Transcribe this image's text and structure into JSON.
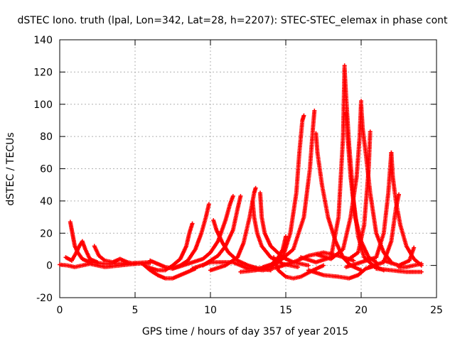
{
  "chart_data": {
    "type": "scatter",
    "title": "dSTEC Iono. truth (lpal, Lon=342, Lat=28, h=2207): STEC-STEC_elemax in phase cont",
    "xlabel": "GPS time / hours of day 357 of year 2015",
    "ylabel": "dSTEC  / TECUs",
    "xlim": [
      0,
      25
    ],
    "ylim": [
      -20,
      140
    ],
    "xticks": [
      0,
      5,
      10,
      15,
      20,
      25
    ],
    "yticks": [
      -20,
      0,
      20,
      40,
      60,
      80,
      100,
      120,
      140
    ],
    "grid": true,
    "legend": "none",
    "marker": "+",
    "color": "#ff0000",
    "series": [
      {
        "points": [
          [
            0.0,
            0.5
          ],
          [
            0.5,
            0
          ],
          [
            1.0,
            -1
          ],
          [
            1.5,
            0
          ],
          [
            2.0,
            1
          ],
          [
            2.5,
            0
          ],
          [
            3.0,
            -1
          ],
          [
            4.0,
            0
          ],
          [
            5.0,
            1
          ],
          [
            6.0,
            1.5
          ]
        ]
      },
      {
        "points": [
          [
            0.7,
            27
          ],
          [
            0.8,
            22
          ],
          [
            0.9,
            17
          ],
          [
            1.0,
            12
          ],
          [
            1.2,
            8
          ],
          [
            1.5,
            4
          ],
          [
            2.0,
            2
          ],
          [
            3.0,
            1
          ],
          [
            4.0,
            1
          ],
          [
            5.0,
            1.5
          ],
          [
            6.0,
            2
          ]
        ]
      },
      {
        "points": [
          [
            0.4,
            5
          ],
          [
            0.8,
            3
          ],
          [
            1.1,
            8
          ],
          [
            1.3,
            12
          ],
          [
            1.5,
            15
          ],
          [
            1.7,
            10
          ],
          [
            2.0,
            4
          ],
          [
            2.5,
            2
          ]
        ]
      },
      {
        "points": [
          [
            2.3,
            12
          ],
          [
            2.6,
            6
          ],
          [
            3.0,
            3
          ],
          [
            3.5,
            2
          ],
          [
            4.0,
            4
          ],
          [
            4.5,
            2
          ],
          [
            5.0,
            1
          ]
        ]
      },
      {
        "points": [
          [
            5.5,
            1
          ],
          [
            6.0,
            -3
          ],
          [
            6.5,
            -6
          ],
          [
            7.0,
            -8
          ],
          [
            7.5,
            -8
          ],
          [
            8.0,
            -6
          ],
          [
            8.5,
            -4
          ],
          [
            9.0,
            -2
          ]
        ]
      },
      {
        "points": [
          [
            5.8,
            -1
          ],
          [
            6.5,
            -3
          ],
          [
            7.0,
            -3
          ],
          [
            7.5,
            0
          ],
          [
            8.0,
            4
          ],
          [
            8.4,
            12
          ],
          [
            8.6,
            20
          ],
          [
            8.8,
            26
          ]
        ]
      },
      {
        "points": [
          [
            6.0,
            3
          ],
          [
            6.5,
            1
          ],
          [
            7.0,
            -1
          ],
          [
            7.5,
            -2
          ],
          [
            8.0,
            0
          ],
          [
            8.5,
            3
          ],
          [
            9.0,
            10
          ],
          [
            9.4,
            20
          ],
          [
            9.7,
            30
          ],
          [
            9.9,
            38
          ]
        ]
      },
      {
        "points": [
          [
            7.5,
            -2
          ],
          [
            8.5,
            1
          ],
          [
            9.5,
            4
          ],
          [
            10.0,
            8
          ],
          [
            10.5,
            15
          ],
          [
            11.0,
            28
          ],
          [
            11.3,
            38
          ],
          [
            11.5,
            43
          ]
        ]
      },
      {
        "points": [
          [
            9.5,
            0
          ],
          [
            10.0,
            3
          ],
          [
            10.5,
            6
          ],
          [
            11.0,
            12
          ],
          [
            11.5,
            22
          ],
          [
            11.8,
            35
          ],
          [
            12.0,
            43
          ]
        ]
      },
      {
        "points": [
          [
            10.0,
            -3
          ],
          [
            11.0,
            0
          ],
          [
            11.8,
            5
          ],
          [
            12.2,
            14
          ],
          [
            12.6,
            30
          ],
          [
            12.9,
            45
          ],
          [
            13.0,
            48
          ]
        ]
      },
      {
        "points": [
          [
            10.2,
            28
          ],
          [
            10.4,
            22
          ],
          [
            10.8,
            14
          ],
          [
            11.2,
            8
          ],
          [
            11.8,
            3
          ],
          [
            12.5,
            0
          ],
          [
            13.2,
            -2
          ],
          [
            14.0,
            -3
          ]
        ]
      },
      {
        "points": [
          [
            12.8,
            40
          ],
          [
            12.9,
            30
          ],
          [
            13.1,
            20
          ],
          [
            13.4,
            12
          ],
          [
            14.0,
            5
          ],
          [
            14.8,
            1
          ],
          [
            15.8,
            -1
          ]
        ]
      },
      {
        "points": [
          [
            13.3,
            45
          ],
          [
            13.4,
            30
          ],
          [
            13.6,
            20
          ],
          [
            14.0,
            12
          ],
          [
            14.8,
            5
          ],
          [
            15.5,
            2
          ],
          [
            16.5,
            0
          ]
        ]
      },
      {
        "points": [
          [
            12.0,
            -4
          ],
          [
            13.0,
            -3
          ],
          [
            14.0,
            0
          ],
          [
            14.5,
            5
          ],
          [
            14.8,
            10
          ],
          [
            15.0,
            18
          ]
        ]
      },
      {
        "points": [
          [
            14.2,
            5
          ],
          [
            14.5,
            -3
          ],
          [
            15.0,
            -7
          ],
          [
            15.5,
            -8
          ],
          [
            16.0,
            -7
          ],
          [
            16.8,
            -3
          ],
          [
            17.5,
            0
          ]
        ]
      },
      {
        "points": [
          [
            13.0,
            -2
          ],
          [
            14.0,
            -1
          ],
          [
            14.8,
            5
          ],
          [
            15.3,
            20
          ],
          [
            15.7,
            45
          ],
          [
            15.9,
            70
          ],
          [
            16.1,
            90
          ],
          [
            16.2,
            93
          ]
        ]
      },
      {
        "points": [
          [
            13.5,
            -1
          ],
          [
            14.5,
            2
          ],
          [
            15.5,
            10
          ],
          [
            16.2,
            30
          ],
          [
            16.6,
            60
          ],
          [
            16.8,
            85
          ],
          [
            16.9,
            96
          ]
        ]
      },
      {
        "points": [
          [
            17.0,
            82
          ],
          [
            17.1,
            70
          ],
          [
            17.4,
            50
          ],
          [
            17.8,
            30
          ],
          [
            18.3,
            15
          ],
          [
            18.8,
            5
          ],
          [
            19.3,
            0
          ],
          [
            20.0,
            -3
          ]
        ]
      },
      {
        "points": [
          [
            16.0,
            5
          ],
          [
            17.0,
            2
          ],
          [
            18.0,
            5
          ],
          [
            18.5,
            30
          ],
          [
            18.8,
            80
          ],
          [
            18.9,
            124
          ]
        ]
      },
      {
        "points": [
          [
            18.9,
            122
          ],
          [
            19.0,
            105
          ],
          [
            19.2,
            75
          ],
          [
            19.5,
            40
          ],
          [
            19.8,
            18
          ],
          [
            20.2,
            5
          ],
          [
            20.8,
            0
          ],
          [
            21.5,
            -3
          ]
        ]
      },
      {
        "points": [
          [
            19.0,
            95
          ],
          [
            19.1,
            80
          ],
          [
            19.3,
            55
          ],
          [
            19.6,
            30
          ],
          [
            20.0,
            15
          ],
          [
            20.5,
            5
          ],
          [
            21.0,
            2
          ]
        ]
      },
      {
        "points": [
          [
            16.5,
            -3
          ],
          [
            17.5,
            -6
          ],
          [
            18.5,
            -7
          ],
          [
            19.2,
            -8
          ],
          [
            19.8,
            -6
          ],
          [
            20.3,
            -2
          ],
          [
            21.0,
            0
          ]
        ]
      },
      {
        "points": [
          [
            17.0,
            7
          ],
          [
            18.0,
            4
          ],
          [
            18.8,
            10
          ],
          [
            19.3,
            30
          ],
          [
            19.7,
            55
          ],
          [
            19.9,
            80
          ],
          [
            20.0,
            102
          ]
        ]
      },
      {
        "points": [
          [
            20.0,
            100
          ],
          [
            20.1,
            85
          ],
          [
            20.3,
            70
          ],
          [
            20.6,
            45
          ],
          [
            21.0,
            20
          ],
          [
            21.5,
            8
          ],
          [
            22.0,
            2
          ]
        ]
      },
      {
        "points": [
          [
            19.2,
            4
          ],
          [
            19.8,
            8
          ],
          [
            20.2,
            25
          ],
          [
            20.5,
            60
          ],
          [
            20.6,
            83
          ]
        ]
      },
      {
        "points": [
          [
            19.0,
            -1
          ],
          [
            20.0,
            2
          ],
          [
            21.0,
            5
          ],
          [
            21.5,
            20
          ],
          [
            21.8,
            45
          ],
          [
            22.0,
            70
          ]
        ]
      },
      {
        "points": [
          [
            22.0,
            70
          ],
          [
            22.1,
            55
          ],
          [
            22.3,
            40
          ],
          [
            22.6,
            25
          ],
          [
            23.0,
            12
          ],
          [
            23.5,
            4
          ],
          [
            24.0,
            0
          ]
        ]
      },
      {
        "points": [
          [
            20.5,
            -1
          ],
          [
            21.5,
            2
          ],
          [
            22.0,
            15
          ],
          [
            22.3,
            35
          ],
          [
            22.5,
            44
          ]
        ]
      },
      {
        "points": [
          [
            21.0,
            -2
          ],
          [
            22.0,
            -3
          ],
          [
            23.0,
            -4
          ],
          [
            24.0,
            -4
          ]
        ]
      },
      {
        "points": [
          [
            21.5,
            3
          ],
          [
            22.5,
            0
          ],
          [
            23.2,
            3
          ],
          [
            23.5,
            11
          ]
        ]
      },
      {
        "points": [
          [
            22.5,
            -1
          ],
          [
            23.0,
            -1
          ],
          [
            23.5,
            0
          ],
          [
            24.0,
            1
          ]
        ]
      },
      {
        "points": [
          [
            8.8,
            -2
          ],
          [
            10.0,
            2
          ],
          [
            11.5,
            2
          ],
          [
            12.5,
            -2
          ],
          [
            13.5,
            -3
          ],
          [
            14.5,
            -1
          ],
          [
            15.5,
            2
          ],
          [
            16.5,
            6
          ],
          [
            17.5,
            8
          ],
          [
            18.5,
            6
          ],
          [
            19.5,
            3
          ]
        ]
      }
    ]
  }
}
